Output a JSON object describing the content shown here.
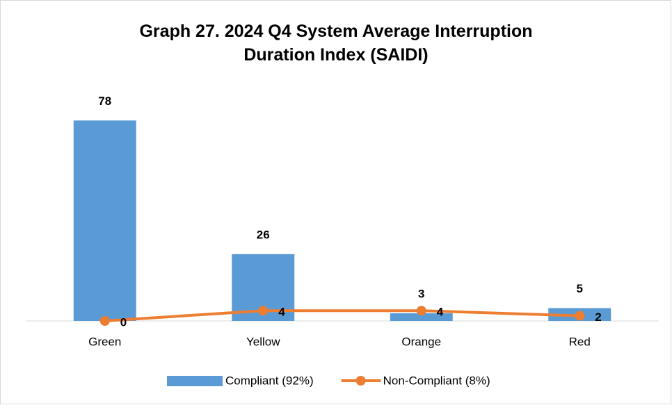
{
  "chart_data": {
    "type": "bar",
    "title": "Graph 27. 2024 Q4 System Average Interruption Duration Index (SAIDI)",
    "categories": [
      "Green",
      "Yellow",
      "Orange",
      "Red"
    ],
    "series": [
      {
        "name": "Compliant (92%)",
        "type": "bar",
        "color": "#5b9bd5",
        "values": [
          78,
          26,
          3,
          5
        ]
      },
      {
        "name": "Non-Compliant (8%)",
        "type": "line",
        "color": "#ed7d31",
        "values": [
          0,
          4,
          4,
          2
        ]
      }
    ],
    "ylim": [
      0,
      80
    ]
  }
}
